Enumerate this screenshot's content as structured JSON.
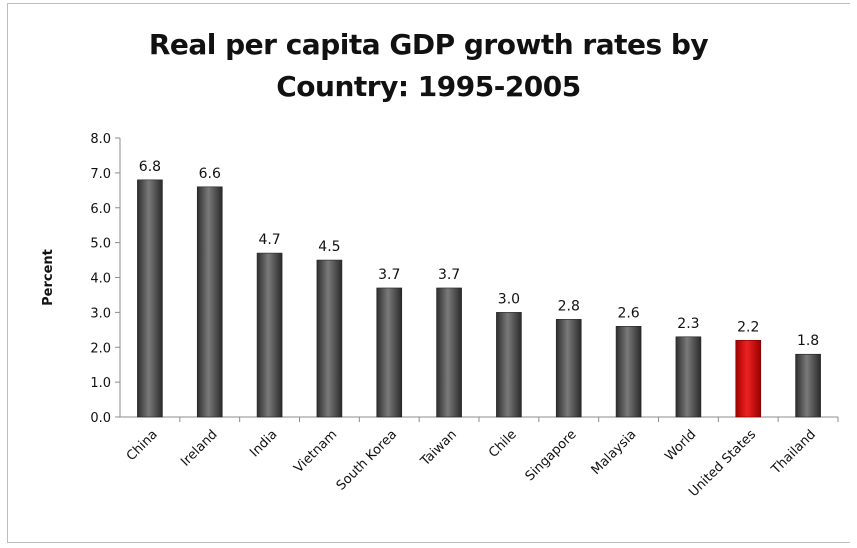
{
  "chart_data": {
    "type": "bar",
    "title": "Real per capita GDP growth rates by\nCountry: 1995-2005",
    "xlabel": "",
    "ylabel": "Percent",
    "ylim": [
      0,
      8
    ],
    "yticks": [
      "0.0",
      "1.0",
      "2.0",
      "3.0",
      "4.0",
      "5.0",
      "6.0",
      "7.0",
      "8.0"
    ],
    "categories": [
      "China",
      "Ireland",
      "India",
      "Vietnam",
      "South Korea",
      "Taiwan",
      "Chile",
      "Singapore",
      "Malaysia",
      "World",
      "United States",
      "Thailand"
    ],
    "values": [
      6.8,
      6.6,
      4.7,
      4.5,
      3.7,
      3.7,
      3.0,
      2.8,
      2.6,
      2.3,
      2.2,
      1.8
    ],
    "data_labels": [
      "6.8",
      "6.6",
      "4.7",
      "4.5",
      "3.7",
      "3.7",
      "3.0",
      "2.8",
      "2.6",
      "2.3",
      "2.2",
      "1.8"
    ],
    "highlight_category": "United States",
    "colors": {
      "bar": "#4d4d4d",
      "highlight": "#cc1111"
    },
    "grid": false,
    "legend": "none"
  }
}
